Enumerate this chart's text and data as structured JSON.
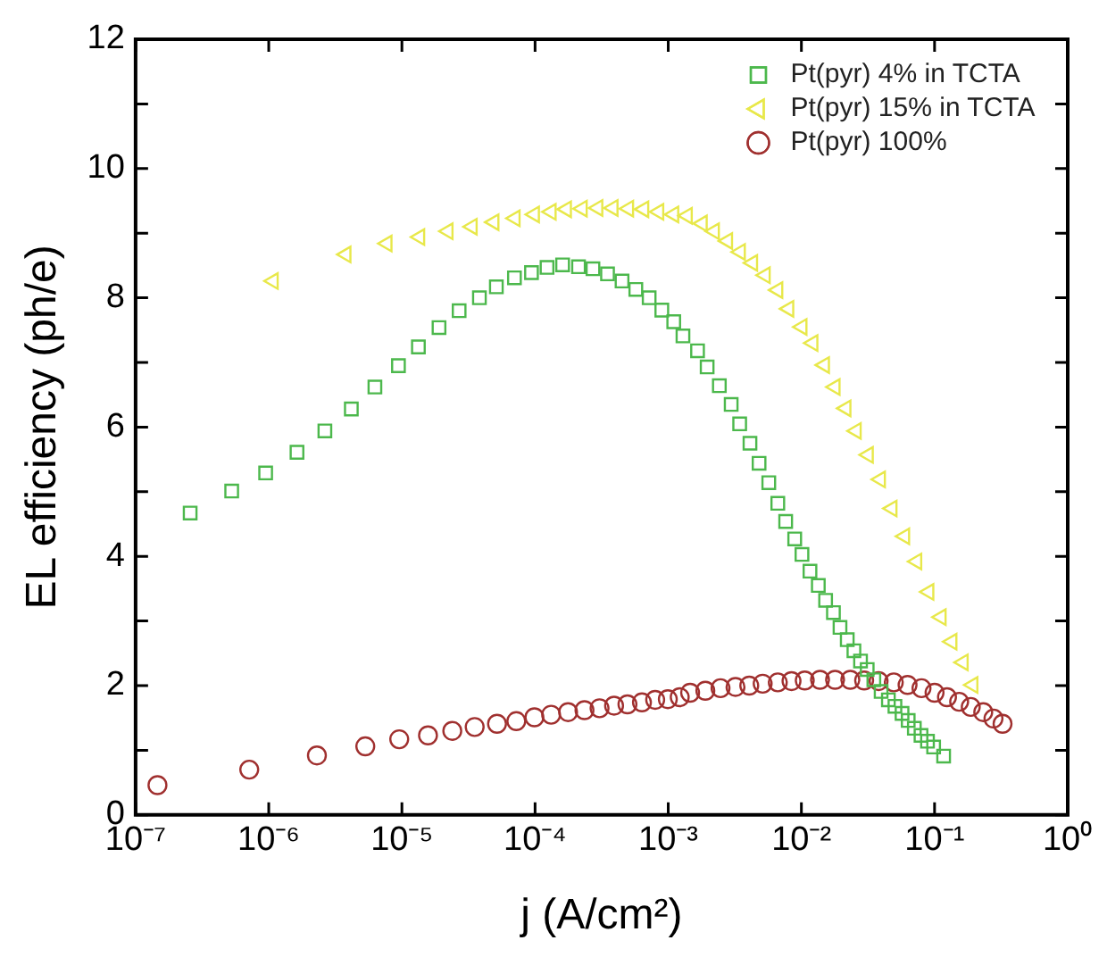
{
  "chart_data": {
    "type": "scatter",
    "xlabel": "j (A/cm²)",
    "ylabel": "EL efficiency (ph/e)",
    "log": "x",
    "xlim": [
      1e-07,
      1
    ],
    "xticks": [
      {
        "value": 1e-07,
        "label": "10⁻⁷"
      },
      {
        "value": 1e-06,
        "label": "10⁻⁶"
      },
      {
        "value": 1e-05,
        "label": "10⁻⁵"
      },
      {
        "value": 0.0001,
        "label": "10⁻⁴"
      },
      {
        "value": 0.001,
        "label": "10⁻³"
      },
      {
        "value": 0.01,
        "label": "10⁻²"
      },
      {
        "value": 0.1,
        "label": "10⁻¹"
      },
      {
        "value": 1,
        "label": "10⁰"
      }
    ],
    "ylim": [
      0,
      12
    ],
    "yticks": [
      0,
      {
        "value": 1,
        "label": null
      },
      2,
      {
        "value": 3,
        "label": null
      },
      4,
      {
        "value": 5,
        "label": null
      },
      6,
      {
        "value": 7,
        "label": null
      },
      8,
      {
        "value": 9,
        "label": null
      },
      10,
      {
        "value": 11,
        "label": null
      },
      12
    ],
    "grid": false,
    "legend": "top right",
    "series": [
      {
        "name": "Pt(pyr) 4% in TCTA",
        "color": "#4cb84c",
        "marker": "square",
        "x": [
          2.57e-07,
          5.27e-07,
          9.48e-07,
          1.63e-06,
          2.64e-06,
          4.17e-06,
          6.27e-06,
          9.42e-06,
          1.33e-05,
          1.9e-05,
          2.69e-05,
          3.82e-05,
          5.12e-05,
          7e-05,
          9.4e-05,
          0.000123,
          0.000161,
          0.000212,
          0.000272,
          0.00035,
          0.00045,
          0.000571,
          0.000719,
          0.000895,
          0.0011,
          0.00129,
          0.00166,
          0.00196,
          0.00242,
          0.00297,
          0.00344,
          0.00411,
          0.00481,
          0.00569,
          0.00665,
          0.00762,
          0.00891,
          0.0101,
          0.0116,
          0.0134,
          0.0152,
          0.0174,
          0.0195,
          0.0221,
          0.0248,
          0.0278,
          0.0312,
          0.035,
          0.0397,
          0.045,
          0.0504,
          0.057,
          0.0634,
          0.0705,
          0.0791,
          0.0885,
          0.0984,
          0.117
        ],
        "values": [
          4.67,
          5.01,
          5.29,
          5.61,
          5.94,
          6.28,
          6.62,
          6.95,
          7.24,
          7.54,
          7.8,
          8.0,
          8.17,
          8.31,
          8.39,
          8.47,
          8.51,
          8.48,
          8.45,
          8.37,
          8.26,
          8.13,
          8.0,
          7.81,
          7.63,
          7.41,
          7.18,
          6.93,
          6.64,
          6.35,
          6.05,
          5.75,
          5.44,
          5.14,
          4.82,
          4.54,
          4.27,
          4.03,
          3.77,
          3.55,
          3.32,
          3.13,
          2.9,
          2.71,
          2.54,
          2.38,
          2.25,
          2.09,
          1.91,
          1.78,
          1.68,
          1.57,
          1.46,
          1.34,
          1.23,
          1.14,
          1.05,
          0.91
        ]
      },
      {
        "name": "Pt(pyr) 15% in TCTA",
        "color": "#e8e84a",
        "marker": "triangle",
        "x": [
          1.08e-06,
          3.8e-06,
          7.73e-06,
          1.36e-05,
          2.22e-05,
          3.37e-05,
          4.91e-05,
          7.08e-05,
          9.89e-05,
          0.000132,
          0.000172,
          0.000226,
          0.000296,
          0.000385,
          0.000504,
          0.000655,
          0.000849,
          0.0011,
          0.00139,
          0.0018,
          0.00222,
          0.00279,
          0.00348,
          0.0043,
          0.00535,
          0.00665,
          0.00804,
          0.0101,
          0.0122,
          0.0149,
          0.0179,
          0.0216,
          0.0258,
          0.0318,
          0.0392,
          0.0479,
          0.0596,
          0.0735,
          0.0906,
          0.112,
          0.135,
          0.164,
          0.194
        ],
        "values": [
          8.26,
          8.67,
          8.84,
          8.94,
          9.03,
          9.1,
          9.17,
          9.23,
          9.29,
          9.33,
          9.37,
          9.38,
          9.39,
          9.39,
          9.38,
          9.37,
          9.33,
          9.29,
          9.27,
          9.15,
          9.03,
          8.88,
          8.71,
          8.54,
          8.35,
          8.12,
          7.83,
          7.55,
          7.3,
          6.96,
          6.62,
          6.29,
          5.94,
          5.57,
          5.19,
          4.74,
          4.31,
          3.92,
          3.45,
          3.06,
          2.68,
          2.36,
          2.01
        ]
      },
      {
        "name": "Pt(pyr) 100%",
        "color": "#a0302f",
        "marker": "circle",
        "x": [
          1.46e-07,
          7.14e-07,
          2.3e-06,
          5.31e-06,
          9.55e-06,
          1.57e-05,
          2.39e-05,
          3.52e-05,
          5.18e-05,
          7.23e-05,
          9.89e-05,
          0.000132,
          0.000177,
          0.000235,
          0.000305,
          0.000392,
          0.000494,
          0.000635,
          0.000798,
          0.000993,
          0.00122,
          0.00146,
          0.0019,
          0.00247,
          0.0032,
          0.00406,
          0.00512,
          0.00665,
          0.00843,
          0.0106,
          0.0138,
          0.0179,
          0.0233,
          0.0296,
          0.038,
          0.0494,
          0.0627,
          0.0798,
          0.1,
          0.124,
          0.153,
          0.187,
          0.232,
          0.277,
          0.324
        ],
        "values": [
          0.46,
          0.7,
          0.92,
          1.06,
          1.17,
          1.23,
          1.3,
          1.36,
          1.41,
          1.45,
          1.51,
          1.55,
          1.59,
          1.62,
          1.65,
          1.69,
          1.71,
          1.74,
          1.78,
          1.79,
          1.82,
          1.89,
          1.92,
          1.96,
          1.98,
          2.0,
          2.03,
          2.05,
          2.07,
          2.08,
          2.09,
          2.09,
          2.09,
          2.08,
          2.07,
          2.05,
          2.01,
          1.96,
          1.89,
          1.82,
          1.75,
          1.67,
          1.59,
          1.49,
          1.41
        ]
      }
    ]
  }
}
